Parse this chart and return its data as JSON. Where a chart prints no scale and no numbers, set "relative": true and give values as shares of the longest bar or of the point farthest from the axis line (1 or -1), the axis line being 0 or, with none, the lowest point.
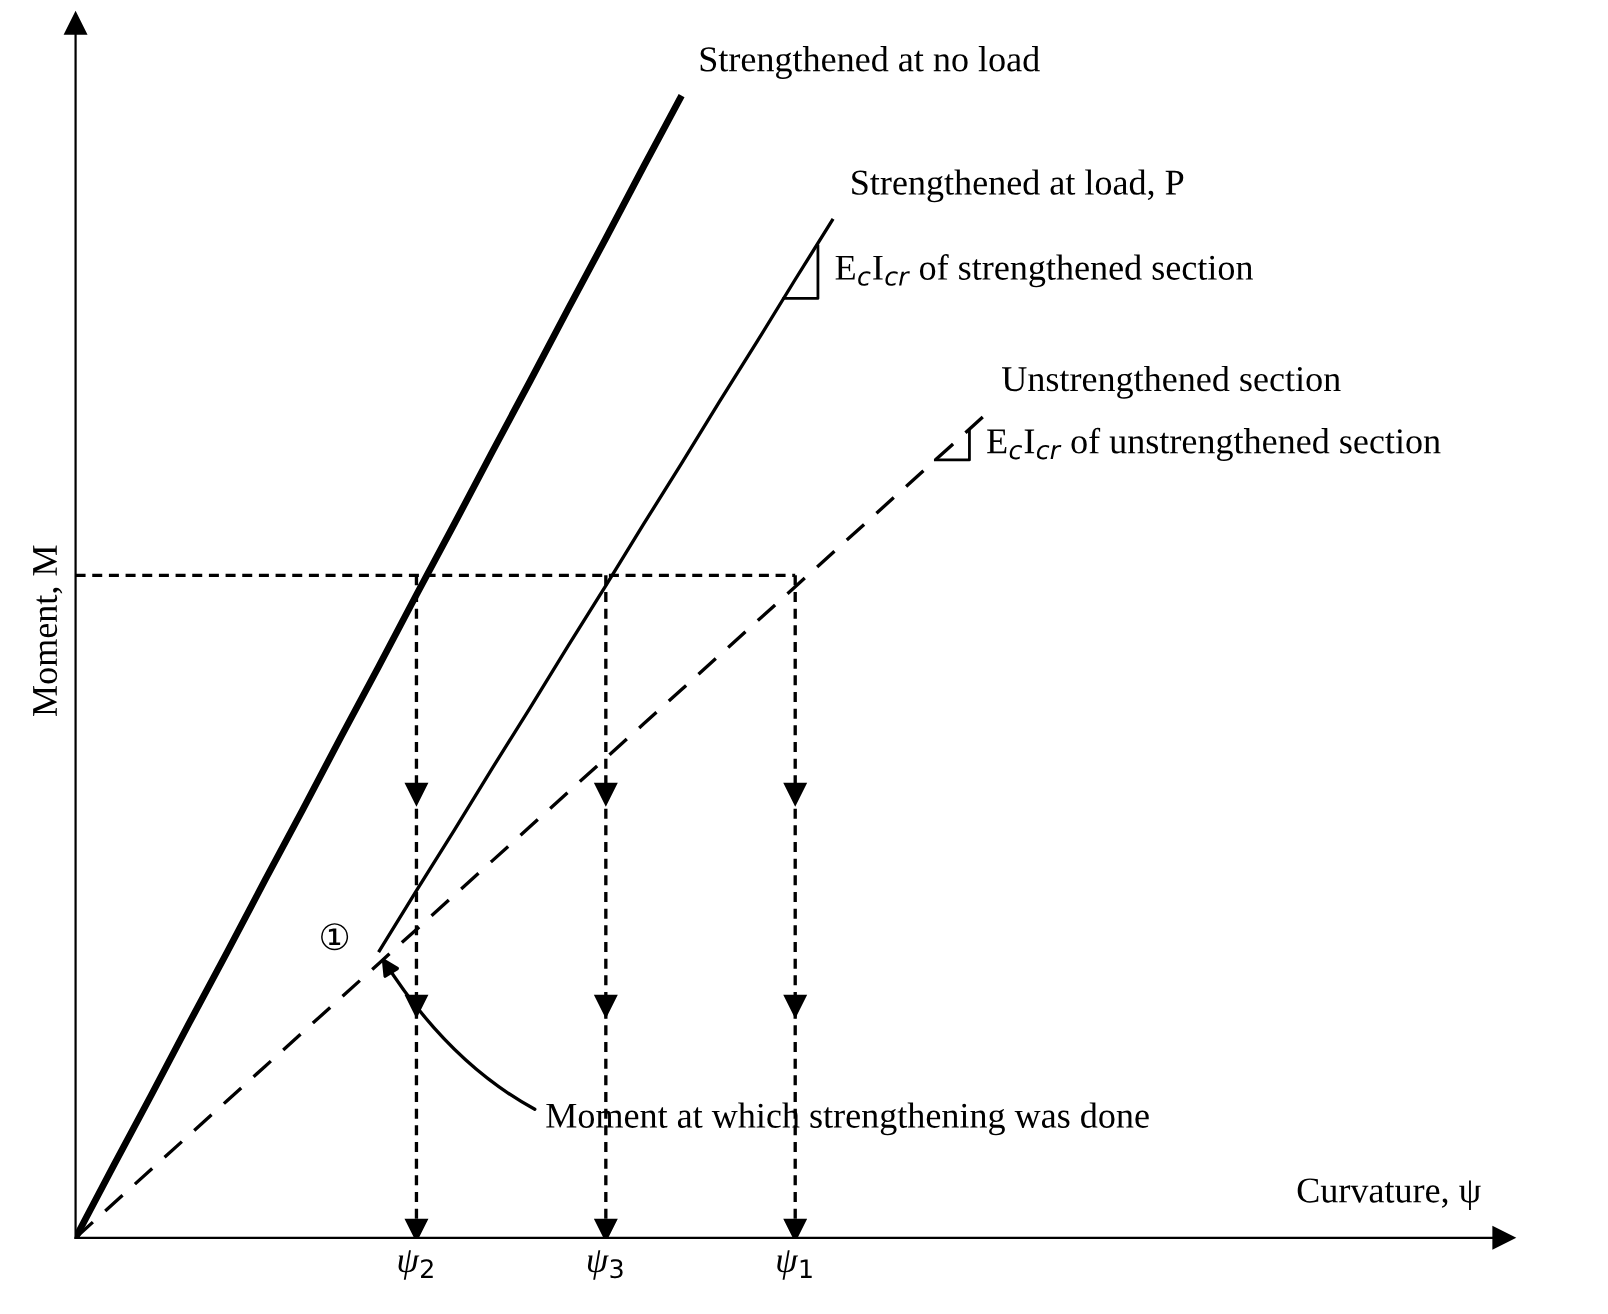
{
  "chart_data": {
    "type": "line",
    "relative": true,
    "xlabel": "Curvature, ψ",
    "ylabel": "Moment, M",
    "categories": [
      null,
      null,
      null,
      null,
      null,
      null,
      null,
      null,
      null,
      "ψ$_{2}$",
      null,
      null,
      null,
      null,
      "ψ$_{3}$",
      null,
      null,
      null,
      null,
      "ψ$_{1}$",
      null,
      null,
      null,
      null,
      null,
      null,
      null,
      null,
      null,
      null,
      null,
      null,
      null,
      null,
      null,
      null,
      null,
      null
    ],
    "tick_labels": "x",
    "legend": false,
    "series": [
      {
        "name": "Strengthened at no load",
        "color": "#000000",
        "line_style": "solid",
        "values": [
          0,
          0.063,
          0.125,
          0.188,
          0.25,
          0.313,
          0.375,
          0.438,
          0.5,
          0.563,
          0.625,
          0.688,
          0.75,
          0.813,
          0.875,
          0.938,
          1.0,
          null,
          null,
          null,
          null,
          null,
          null,
          null,
          null,
          null,
          null,
          null,
          null,
          null,
          null,
          null,
          null,
          null,
          null,
          null,
          null,
          null
        ]
      },
      {
        "name": "Strengthened at load, P",
        "color": "#000000",
        "line_style": "solid",
        "values": [
          null,
          null,
          null,
          null,
          null,
          null,
          null,
          null,
          0.25,
          0.304,
          0.357,
          0.411,
          0.464,
          0.518,
          0.571,
          0.625,
          0.678,
          0.732,
          0.785,
          0.839,
          0.892,
          null,
          null,
          null,
          null,
          null,
          null,
          null,
          null,
          null,
          null,
          null,
          null,
          null,
          null,
          null,
          null,
          null
        ]
      },
      {
        "name": "Unstrengthened section",
        "color": "#000000",
        "line_style": "dashed",
        "values": [
          0,
          0.03,
          0.06,
          0.09,
          0.12,
          0.15,
          0.18,
          0.21,
          0.24,
          0.27,
          0.3,
          0.33,
          0.36,
          0.39,
          0.42,
          0.45,
          0.48,
          0.51,
          0.54,
          0.57,
          0.6,
          0.63,
          0.66,
          0.69,
          0.72,
          null,
          null,
          null,
          null,
          null,
          null,
          null,
          null,
          null,
          null,
          null,
          null,
          null
        ]
      },
      {
        "color": "#000000",
        "line_style": "dotted",
        "values": [
          0.58,
          0.58,
          0.58,
          0.58,
          0.58,
          0.58,
          0.58,
          0.58,
          0.58,
          0.58,
          0.58,
          0.58,
          0.58,
          0.58,
          0.58,
          0.58,
          0.58,
          0.58,
          0.58,
          0.58,
          null,
          null,
          null,
          null,
          null,
          null,
          null,
          null,
          null,
          null,
          null,
          null,
          null,
          null,
          null,
          null,
          null,
          null
        ]
      }
    ],
    "ref_lines": [
      {
        "axis": "x",
        "value": "ψ$_{2}$",
        "line_style": "dotted",
        "color": "#000000"
      },
      {
        "axis": "x",
        "value": "ψ$_{3}$",
        "line_style": "dotted",
        "color": "#000000"
      },
      {
        "axis": "x",
        "value": "ψ$_{1}$",
        "line_style": "dotted",
        "color": "#000000"
      }
    ],
    "annotations": [
      "E$_{c}$I$_{cr}$ of strengthened section",
      "E$_{c}$I$_{cr}$ of unstrengthened section",
      "①",
      "Moment at which strengthening was done"
    ]
  }
}
